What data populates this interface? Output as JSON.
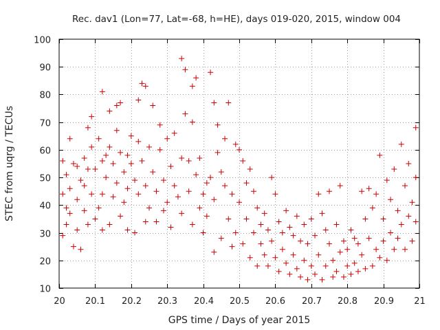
{
  "chart_data": {
    "type": "scatter",
    "title": "Rec. dav1 (Lon=77, Lat=-68, h=HE), days 019-020, 2015, window 004",
    "xlabel": "GPS time / Days of year 2015",
    "ylabel": "STEC from uqrg / TECUs",
    "xlim": [
      20,
      21
    ],
    "ylim": [
      10,
      100
    ],
    "xticks": [
      20,
      20.1,
      20.2,
      20.3,
      20.4,
      20.5,
      20.6,
      20.7,
      20.8,
      20.9,
      21
    ],
    "xtick_labels": [
      "20",
      "20.1",
      "20.2",
      "20.3",
      "20.4",
      "20.5",
      "20.6",
      "20.7",
      "20.8",
      "20.9",
      "21"
    ],
    "yticks": [
      10,
      20,
      30,
      40,
      50,
      60,
      70,
      80,
      90,
      100
    ],
    "ytick_labels": [
      "10",
      "20",
      "30",
      "40",
      "50",
      "60",
      "70",
      "80",
      "90",
      "100"
    ],
    "grid": true,
    "legend": false,
    "marker": "plus",
    "color": "#cc0000",
    "series": [
      {
        "points": [
          [
            20.01,
            56
          ],
          [
            20.01,
            44
          ],
          [
            20.01,
            29
          ],
          [
            20.02,
            51
          ],
          [
            20.02,
            39
          ],
          [
            20.02,
            33
          ],
          [
            20.03,
            64
          ],
          [
            20.03,
            46
          ],
          [
            20.03,
            37
          ],
          [
            20.04,
            55
          ],
          [
            20.04,
            25
          ],
          [
            20.05,
            54
          ],
          [
            20.05,
            42
          ],
          [
            20.05,
            31
          ],
          [
            20.06,
            49
          ],
          [
            20.06,
            24
          ],
          [
            20.07,
            57
          ],
          [
            20.07,
            47
          ],
          [
            20.07,
            38
          ],
          [
            20.08,
            68
          ],
          [
            20.08,
            53
          ],
          [
            20.08,
            33
          ],
          [
            20.09,
            72
          ],
          [
            20.09,
            61
          ],
          [
            20.09,
            44
          ],
          [
            20.1,
            53
          ],
          [
            20.1,
            35
          ],
          [
            20.11,
            64
          ],
          [
            20.11,
            39
          ],
          [
            20.12,
            81
          ],
          [
            20.12,
            56
          ],
          [
            20.12,
            44
          ],
          [
            20.12,
            31
          ],
          [
            20.13,
            58
          ],
          [
            20.13,
            50
          ],
          [
            20.14,
            74
          ],
          [
            20.14,
            61
          ],
          [
            20.14,
            33
          ],
          [
            20.15,
            55
          ],
          [
            20.15,
            43
          ],
          [
            20.16,
            76
          ],
          [
            20.16,
            67
          ],
          [
            20.16,
            48
          ],
          [
            20.17,
            77
          ],
          [
            20.17,
            59
          ],
          [
            20.17,
            36
          ],
          [
            20.18,
            52
          ],
          [
            20.18,
            41
          ],
          [
            20.19,
            58
          ],
          [
            20.19,
            46
          ],
          [
            20.19,
            31
          ],
          [
            20.2,
            65
          ],
          [
            20.2,
            55
          ],
          [
            20.21,
            49
          ],
          [
            20.21,
            30
          ],
          [
            20.22,
            78
          ],
          [
            20.22,
            63
          ],
          [
            20.22,
            44
          ],
          [
            20.23,
            84
          ],
          [
            20.23,
            56
          ],
          [
            20.24,
            83
          ],
          [
            20.24,
            47
          ],
          [
            20.24,
            34
          ],
          [
            20.25,
            61
          ],
          [
            20.25,
            39
          ],
          [
            20.26,
            76
          ],
          [
            20.26,
            52
          ],
          [
            20.27,
            45
          ],
          [
            20.27,
            34
          ],
          [
            20.28,
            69
          ],
          [
            20.28,
            60
          ],
          [
            20.29,
            49
          ],
          [
            20.29,
            38
          ],
          [
            20.3,
            64
          ],
          [
            20.3,
            41
          ],
          [
            20.31,
            54
          ],
          [
            20.31,
            32
          ],
          [
            20.32,
            66
          ],
          [
            20.32,
            47
          ],
          [
            20.33,
            43
          ],
          [
            20.34,
            93
          ],
          [
            20.34,
            57
          ],
          [
            20.34,
            37
          ],
          [
            20.35,
            89
          ],
          [
            20.35,
            73
          ],
          [
            20.36,
            56
          ],
          [
            20.36,
            45
          ],
          [
            20.37,
            83
          ],
          [
            20.37,
            70
          ],
          [
            20.37,
            33
          ],
          [
            20.38,
            86
          ],
          [
            20.38,
            51
          ],
          [
            20.39,
            57
          ],
          [
            20.39,
            39
          ],
          [
            20.4,
            44
          ],
          [
            20.4,
            30
          ],
          [
            20.41,
            48
          ],
          [
            20.41,
            36
          ],
          [
            20.42,
            88
          ],
          [
            20.42,
            50
          ],
          [
            20.43,
            77
          ],
          [
            20.43,
            42
          ],
          [
            20.43,
            23
          ],
          [
            20.44,
            69
          ],
          [
            20.44,
            59
          ],
          [
            20.45,
            52
          ],
          [
            20.45,
            28
          ],
          [
            20.46,
            64
          ],
          [
            20.46,
            47
          ],
          [
            20.47,
            77
          ],
          [
            20.47,
            35
          ],
          [
            20.48,
            44
          ],
          [
            20.48,
            25
          ],
          [
            20.49,
            62
          ],
          [
            20.49,
            30
          ],
          [
            20.5,
            60
          ],
          [
            20.5,
            41
          ],
          [
            20.51,
            56
          ],
          [
            20.51,
            26
          ],
          [
            20.52,
            48
          ],
          [
            20.52,
            35
          ],
          [
            20.53,
            53
          ],
          [
            20.53,
            21
          ],
          [
            20.54,
            45
          ],
          [
            20.54,
            30
          ],
          [
            20.55,
            39
          ],
          [
            20.55,
            18
          ],
          [
            20.56,
            33
          ],
          [
            20.56,
            26
          ],
          [
            20.57,
            37
          ],
          [
            20.57,
            22
          ],
          [
            20.58,
            31
          ],
          [
            20.58,
            18
          ],
          [
            20.59,
            50
          ],
          [
            20.59,
            27
          ],
          [
            20.6,
            44
          ],
          [
            20.6,
            21
          ],
          [
            20.61,
            34
          ],
          [
            20.61,
            16
          ],
          [
            20.62,
            30
          ],
          [
            20.62,
            24
          ],
          [
            20.63,
            38
          ],
          [
            20.63,
            19
          ],
          [
            20.64,
            32
          ],
          [
            20.64,
            15
          ],
          [
            20.65,
            29
          ],
          [
            20.65,
            22
          ],
          [
            20.66,
            36
          ],
          [
            20.66,
            17
          ],
          [
            20.67,
            27
          ],
          [
            20.67,
            14
          ],
          [
            20.68,
            33
          ],
          [
            20.68,
            20
          ],
          [
            20.69,
            26
          ],
          [
            20.69,
            13
          ],
          [
            20.7,
            35
          ],
          [
            20.7,
            18
          ],
          [
            20.71,
            29
          ],
          [
            20.71,
            15
          ],
          [
            20.72,
            44
          ],
          [
            20.72,
            22
          ],
          [
            20.73,
            37
          ],
          [
            20.73,
            13
          ],
          [
            20.74,
            31
          ],
          [
            20.74,
            18
          ],
          [
            20.75,
            45
          ],
          [
            20.75,
            26
          ],
          [
            20.76,
            20
          ],
          [
            20.76,
            14
          ],
          [
            20.77,
            33
          ],
          [
            20.77,
            16
          ],
          [
            20.78,
            47
          ],
          [
            20.78,
            23
          ],
          [
            20.79,
            27
          ],
          [
            20.79,
            14
          ],
          [
            20.8,
            24
          ],
          [
            20.8,
            18
          ],
          [
            20.81,
            31
          ],
          [
            20.81,
            15
          ],
          [
            20.82,
            28
          ],
          [
            20.82,
            19
          ],
          [
            20.83,
            26
          ],
          [
            20.83,
            16
          ],
          [
            20.84,
            45
          ],
          [
            20.84,
            22
          ],
          [
            20.85,
            35
          ],
          [
            20.85,
            17
          ],
          [
            20.86,
            46
          ],
          [
            20.86,
            28
          ],
          [
            20.87,
            39
          ],
          [
            20.87,
            18
          ],
          [
            20.88,
            44
          ],
          [
            20.88,
            24
          ],
          [
            20.89,
            58
          ],
          [
            20.89,
            21
          ],
          [
            20.9,
            35
          ],
          [
            20.9,
            27
          ],
          [
            20.91,
            49
          ],
          [
            20.91,
            20
          ],
          [
            20.92,
            42
          ],
          [
            20.92,
            30
          ],
          [
            20.93,
            53
          ],
          [
            20.93,
            24
          ],
          [
            20.94,
            38
          ],
          [
            20.94,
            28
          ],
          [
            20.95,
            62
          ],
          [
            20.95,
            33
          ],
          [
            20.96,
            47
          ],
          [
            20.96,
            24
          ],
          [
            20.97,
            55
          ],
          [
            20.97,
            36
          ],
          [
            20.98,
            41
          ],
          [
            20.98,
            27
          ],
          [
            20.99,
            68
          ],
          [
            20.99,
            50
          ],
          [
            20.99,
            34
          ]
        ]
      }
    ]
  }
}
